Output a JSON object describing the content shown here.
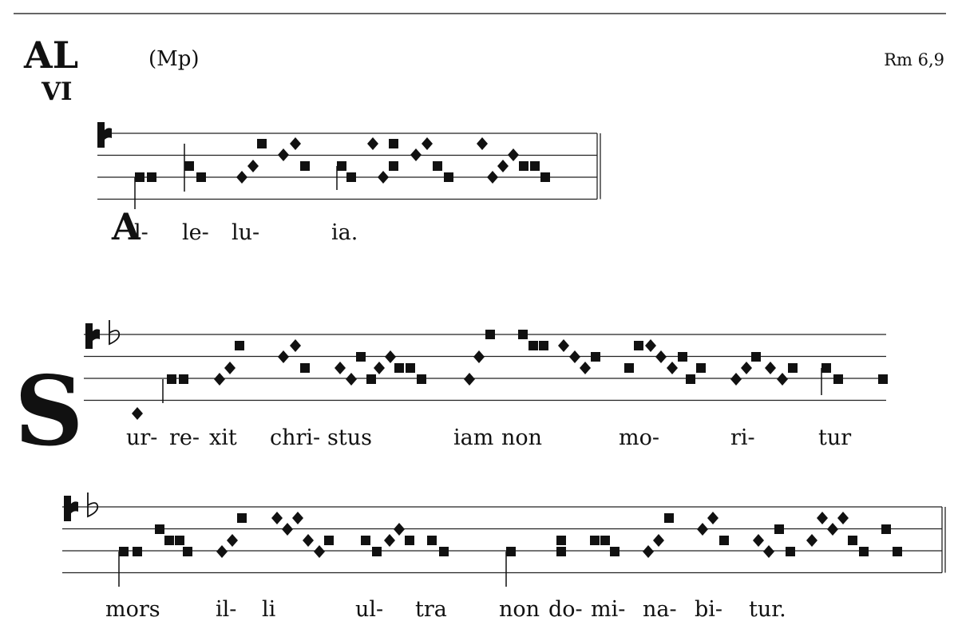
{
  "header": {
    "mode": "AL",
    "mode_number": "VI",
    "source": "(Mp)",
    "reference": "Rm 6,9"
  },
  "lines": [
    {
      "initial": "A",
      "syllables": [
        "l-",
        "le-",
        "lu-",
        "ia."
      ]
    },
    {
      "initial": "S",
      "syllables": [
        "ur-",
        "re-",
        "xit",
        "chri-",
        "stus",
        "iam",
        "non",
        "mo-",
        "ri-",
        "tur"
      ]
    },
    {
      "syllables": [
        "mors",
        "il-",
        "li",
        "ul-",
        "tra",
        "non",
        "do-",
        "mi-",
        "na-",
        "bi-",
        "tur."
      ]
    }
  ]
}
